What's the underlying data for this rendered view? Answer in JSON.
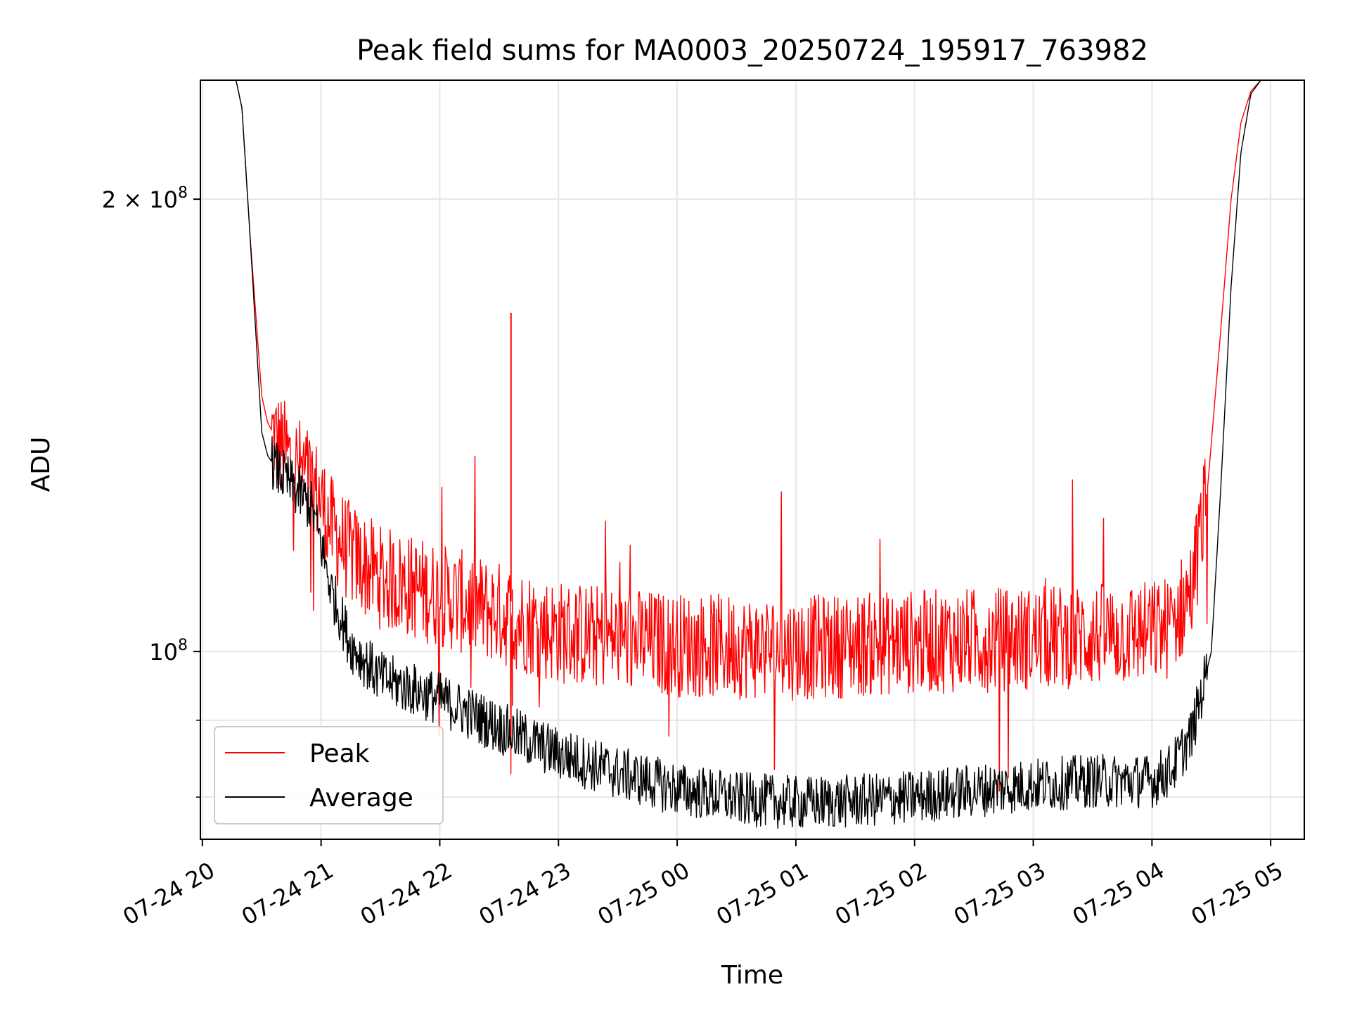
{
  "chart_data": {
    "type": "line",
    "title": "Peak field sums for MA0003_20250724_195917_763982",
    "xlabel": "Time",
    "ylabel": "ADU",
    "y_scale": "log",
    "ylim": [
      75000000,
      240000000
    ],
    "xlim": [
      "2025-07-24 19:59",
      "2025-07-25 05:17"
    ],
    "grid": true,
    "legend": "lower-left",
    "x_tick_labels": [
      "07-24 20",
      "07-24 21",
      "07-24 22",
      "07-24 23",
      "07-25 00",
      "07-25 01",
      "07-25 02",
      "07-25 03",
      "07-25 04",
      "07-25 05"
    ],
    "y_tick_labels": [
      {
        "value": 200000000,
        "base": "2 × 10",
        "exp": "8"
      },
      {
        "value": 100000000,
        "base": "10",
        "exp": "8"
      }
    ],
    "colors": {
      "peak": "#ff0000",
      "average": "#000000",
      "grid": "#e6e6e6"
    },
    "series": [
      {
        "name": "Peak",
        "color": "#ff0000",
        "x": [
          "2025-07-24 19:59",
          "2025-07-24 20:17",
          "2025-07-24 20:20",
          "2025-07-24 20:24",
          "2025-07-24 20:30",
          "2025-07-24 20:33",
          "2025-07-24 20:38",
          "2025-07-24 20:45",
          "2025-07-24 20:55",
          "2025-07-24 21:00",
          "2025-07-24 21:05",
          "2025-07-24 21:15",
          "2025-07-24 21:30",
          "2025-07-24 22:00",
          "2025-07-24 22:30",
          "2025-07-24 23:00",
          "2025-07-24 23:30",
          "2025-07-25 00:00",
          "2025-07-25 01:00",
          "2025-07-25 02:00",
          "2025-07-25 03:00",
          "2025-07-25 04:00",
          "2025-07-25 04:10",
          "2025-07-25 04:20",
          "2025-07-25 04:28",
          "2025-07-25 04:35",
          "2025-07-25 04:40",
          "2025-07-25 04:45",
          "2025-07-25 04:50",
          "2025-07-25 04:55",
          "2025-07-25 05:17"
        ],
        "values": [
          240000000,
          240000000,
          230000000,
          190000000,
          148000000,
          142000000,
          138000000,
          134000000,
          130000000,
          126000000,
          121000000,
          116000000,
          112000000,
          109000000,
          106000000,
          103000000,
          102000000,
          101000000,
          100500000,
          101500000,
          102000000,
          103000000,
          104000000,
          110000000,
          128000000,
          165000000,
          200000000,
          225000000,
          236000000,
          240000000,
          240000000
        ]
      },
      {
        "name": "Average",
        "color": "#000000",
        "x": [
          "2025-07-24 19:59",
          "2025-07-24 20:17",
          "2025-07-24 20:20",
          "2025-07-24 20:24",
          "2025-07-24 20:30",
          "2025-07-24 20:33",
          "2025-07-24 20:38",
          "2025-07-24 20:45",
          "2025-07-24 20:55",
          "2025-07-24 21:00",
          "2025-07-24 21:05",
          "2025-07-24 21:15",
          "2025-07-24 21:30",
          "2025-07-24 22:00",
          "2025-07-24 22:30",
          "2025-07-24 23:00",
          "2025-07-24 23:30",
          "2025-07-25 00:00",
          "2025-07-25 00:30",
          "2025-07-25 01:00",
          "2025-07-25 01:30",
          "2025-07-25 02:00",
          "2025-07-25 02:30",
          "2025-07-25 03:00",
          "2025-07-25 03:30",
          "2025-07-25 04:00",
          "2025-07-25 04:10",
          "2025-07-25 04:20",
          "2025-07-25 04:30",
          "2025-07-25 04:35",
          "2025-07-25 04:40",
          "2025-07-25 04:45",
          "2025-07-25 04:50",
          "2025-07-25 04:55",
          "2025-07-25 05:17"
        ],
        "values": [
          240000000,
          240000000,
          230000000,
          190000000,
          140000000,
          135000000,
          132000000,
          129000000,
          125000000,
          118000000,
          110000000,
          101000000,
          96000000,
          93000000,
          89000000,
          85500000,
          83000000,
          81000000,
          79800000,
          79300000,
          79500000,
          80000000,
          80800000,
          81500000,
          82000000,
          82000000,
          83500000,
          88000000,
          100000000,
          130000000,
          175000000,
          215000000,
          235000000,
          240000000,
          240000000
        ]
      }
    ],
    "annotations": []
  }
}
